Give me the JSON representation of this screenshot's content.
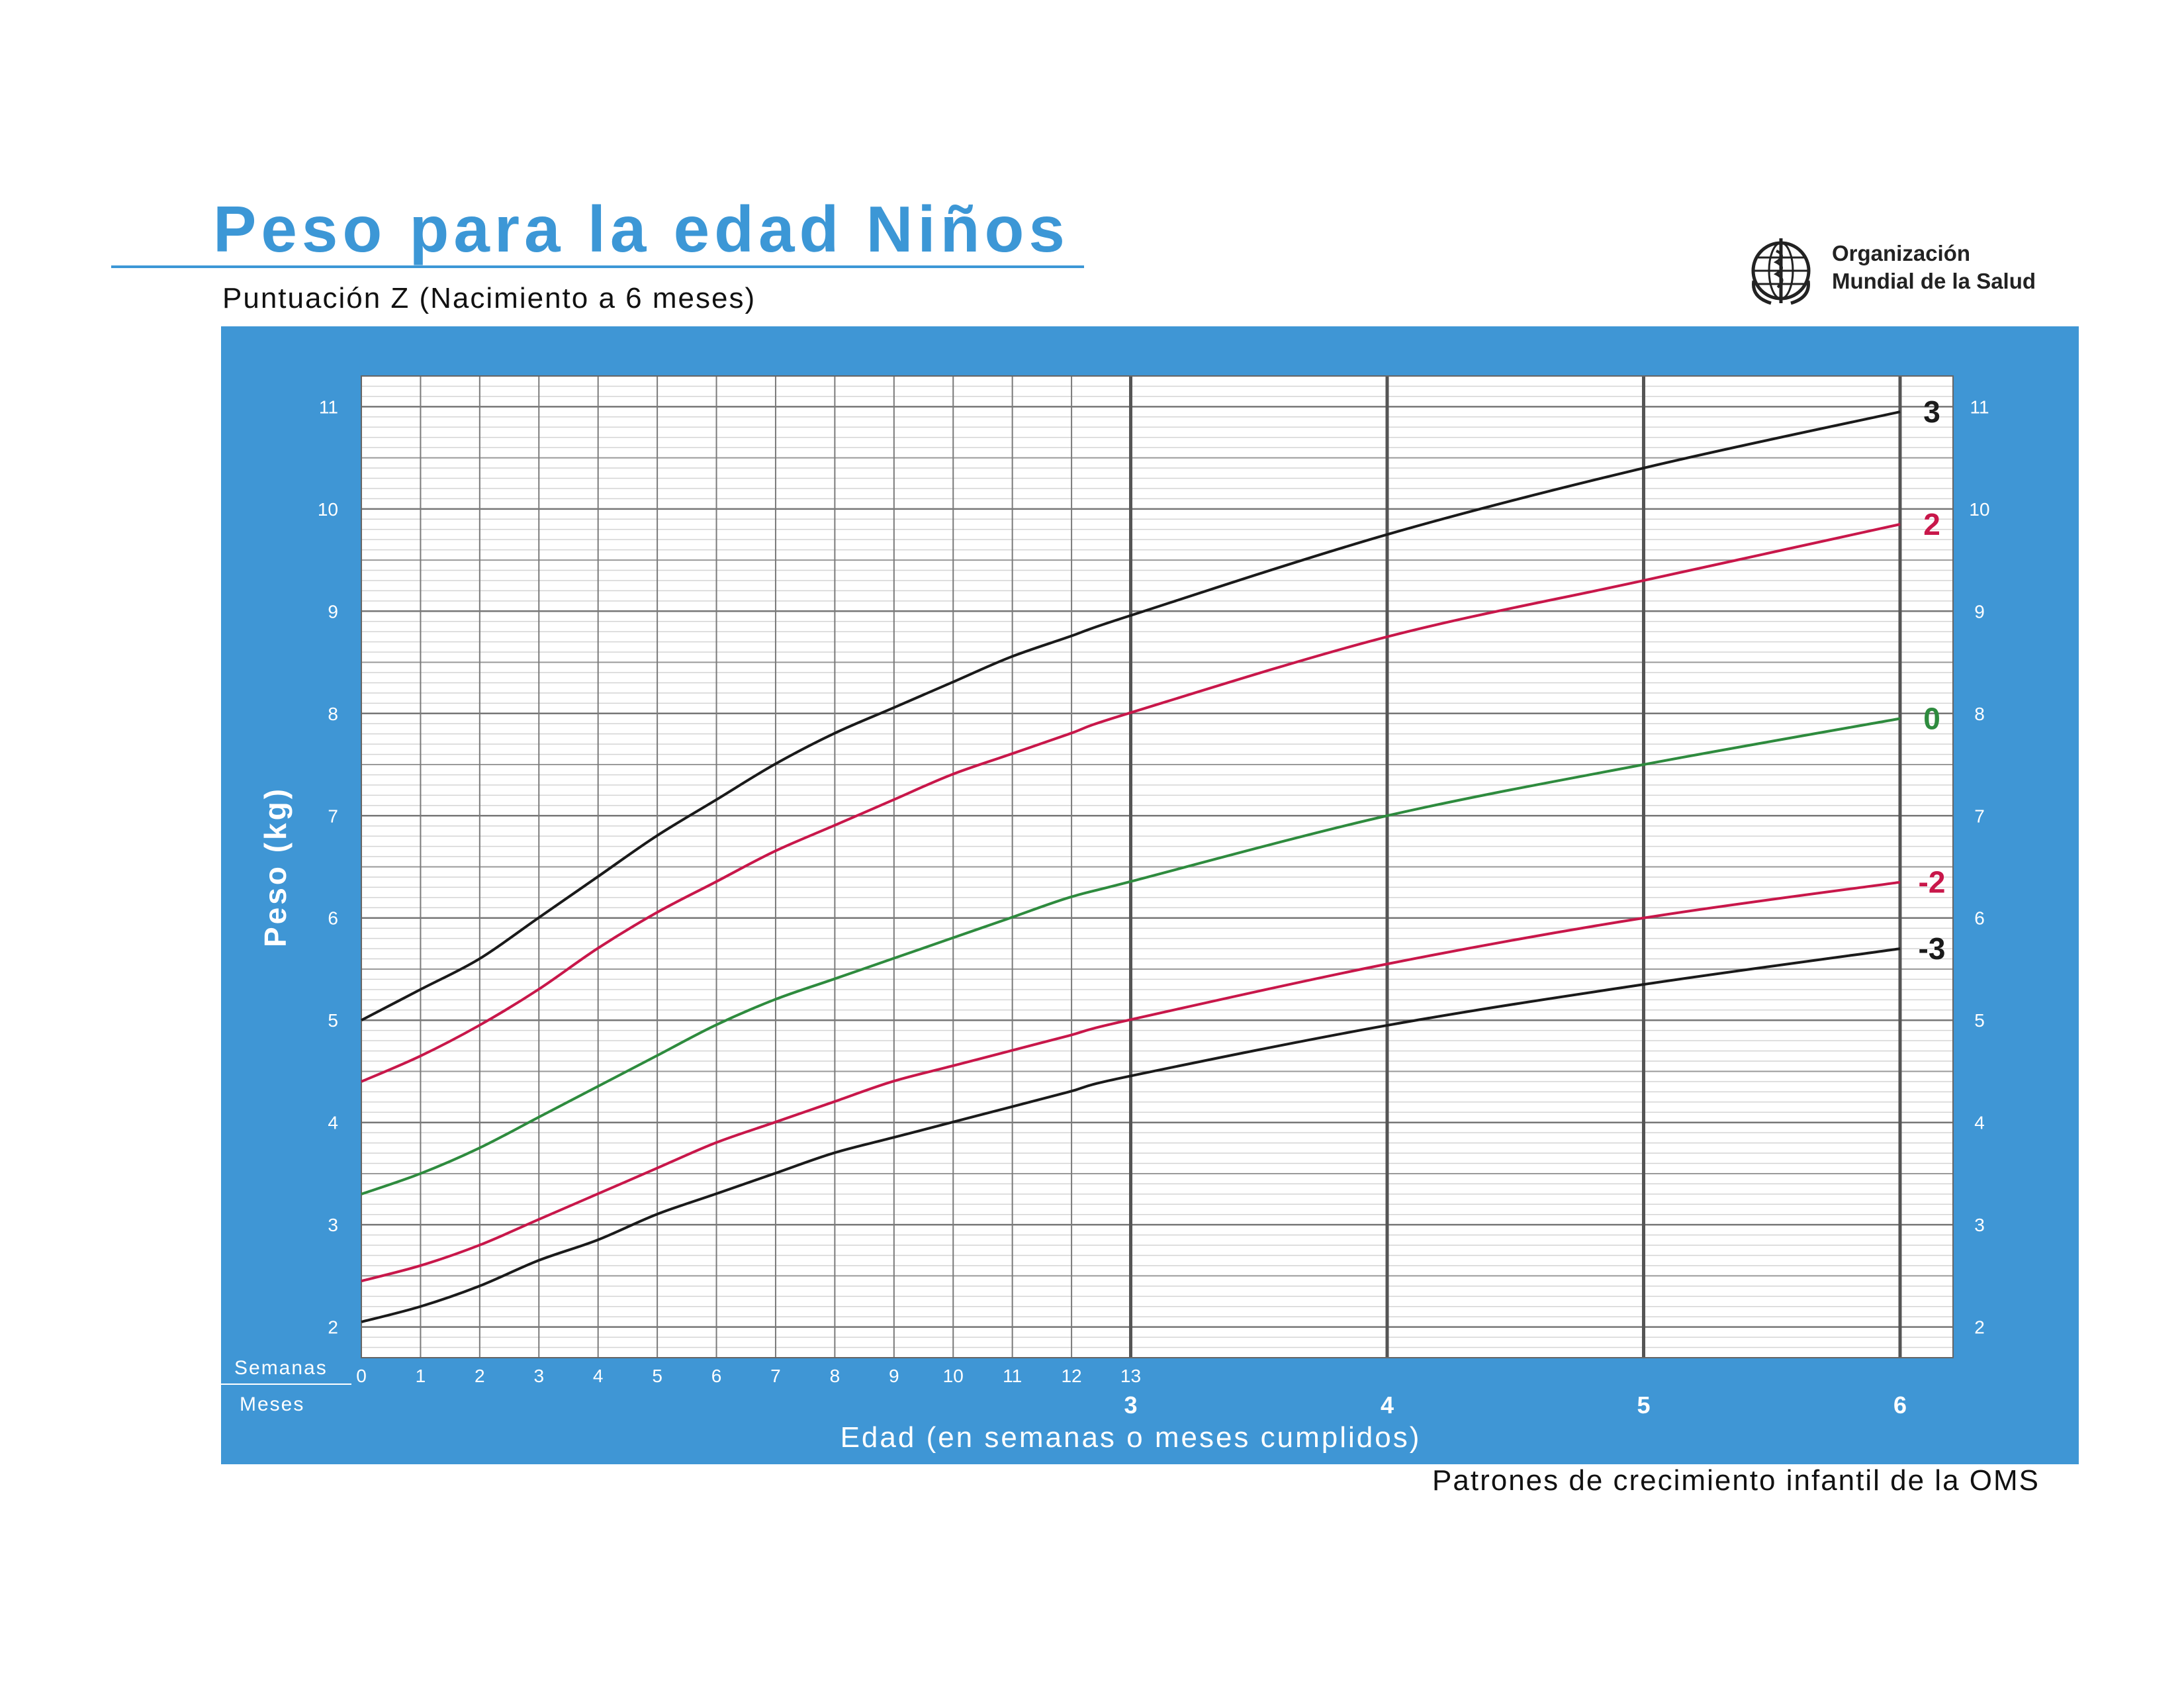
{
  "header": {
    "title": "Peso para la edad Niños",
    "subtitle": "Puntuación Z (Nacimiento a 6 meses)"
  },
  "logo": {
    "line1": "Organización",
    "line2": "Mundial de la Salud",
    "icon": "who-emblem-icon"
  },
  "footer": "Patrones de crecimiento infantil de la OMS",
  "colors": {
    "panel": "#3f96d5",
    "title": "#3c97d6",
    "sd3": "#1a1a1a",
    "sd2": "#c8174a",
    "median": "#2e8b3e"
  },
  "chart_data": {
    "type": "line",
    "title": "Peso para la edad Niños",
    "subtitle": "Puntuación Z (Nacimiento a 6 meses)",
    "xlabel": "Edad (en semanas o meses cumplidos)",
    "ylabel": "Peso (kg)",
    "x_unit_label_weeks": "Semanas",
    "x_unit_label_months": "Meses",
    "week_ticks": [
      "0",
      "1",
      "2",
      "3",
      "4",
      "5",
      "6",
      "7",
      "8",
      "9",
      "10",
      "11",
      "12",
      "13"
    ],
    "month_ticks": [
      "3",
      "4",
      "5",
      "6"
    ],
    "y_ticks": [
      "2",
      "3",
      "4",
      "5",
      "6",
      "7",
      "8",
      "9",
      "10",
      "11"
    ],
    "ylim": [
      1.7,
      11.3
    ],
    "xlim_months": [
      0,
      6.6
    ],
    "grid": true,
    "legend": "right-end labels",
    "series": [
      {
        "name": "3",
        "color": "#1a1a1a",
        "x": [
          0,
          0.23,
          0.46,
          0.69,
          0.92,
          1.15,
          1.38,
          1.61,
          1.84,
          2.07,
          2.3,
          2.53,
          2.76,
          2.99,
          4,
          5,
          6
        ],
        "y": [
          5.0,
          5.3,
          5.6,
          6.0,
          6.4,
          6.8,
          7.15,
          7.5,
          7.8,
          8.05,
          8.3,
          8.55,
          8.75,
          8.95,
          9.75,
          10.4,
          10.95
        ]
      },
      {
        "name": "2",
        "color": "#c8174a",
        "x": [
          0,
          0.23,
          0.46,
          0.69,
          0.92,
          1.15,
          1.38,
          1.61,
          1.84,
          2.07,
          2.3,
          2.53,
          2.76,
          2.99,
          4,
          5,
          6
        ],
        "y": [
          4.4,
          4.65,
          4.95,
          5.3,
          5.7,
          6.05,
          6.35,
          6.65,
          6.9,
          7.15,
          7.4,
          7.6,
          7.8,
          8.0,
          8.75,
          9.3,
          9.85
        ]
      },
      {
        "name": "0",
        "color": "#2e8b3e",
        "x": [
          0,
          0.23,
          0.46,
          0.69,
          0.92,
          1.15,
          1.38,
          1.61,
          1.84,
          2.07,
          2.3,
          2.53,
          2.76,
          2.99,
          4,
          5,
          6
        ],
        "y": [
          3.3,
          3.5,
          3.75,
          4.05,
          4.35,
          4.65,
          4.95,
          5.2,
          5.4,
          5.6,
          5.8,
          6.0,
          6.2,
          6.35,
          7.0,
          7.5,
          7.95
        ]
      },
      {
        "name": "-2",
        "color": "#c8174a",
        "x": [
          0,
          0.23,
          0.46,
          0.69,
          0.92,
          1.15,
          1.38,
          1.61,
          1.84,
          2.07,
          2.3,
          2.53,
          2.76,
          2.99,
          4,
          5,
          6
        ],
        "y": [
          2.45,
          2.6,
          2.8,
          3.05,
          3.3,
          3.55,
          3.8,
          4.0,
          4.2,
          4.4,
          4.55,
          4.7,
          4.85,
          5.0,
          5.55,
          6.0,
          6.35
        ]
      },
      {
        "name": "-3",
        "color": "#1a1a1a",
        "x": [
          0,
          0.23,
          0.46,
          0.69,
          0.92,
          1.15,
          1.38,
          1.61,
          1.84,
          2.07,
          2.3,
          2.53,
          2.76,
          2.99,
          4,
          5,
          6
        ],
        "y": [
          2.05,
          2.2,
          2.4,
          2.65,
          2.85,
          3.1,
          3.3,
          3.5,
          3.7,
          3.85,
          4.0,
          4.15,
          4.3,
          4.45,
          4.95,
          5.35,
          5.7
        ]
      }
    ]
  }
}
